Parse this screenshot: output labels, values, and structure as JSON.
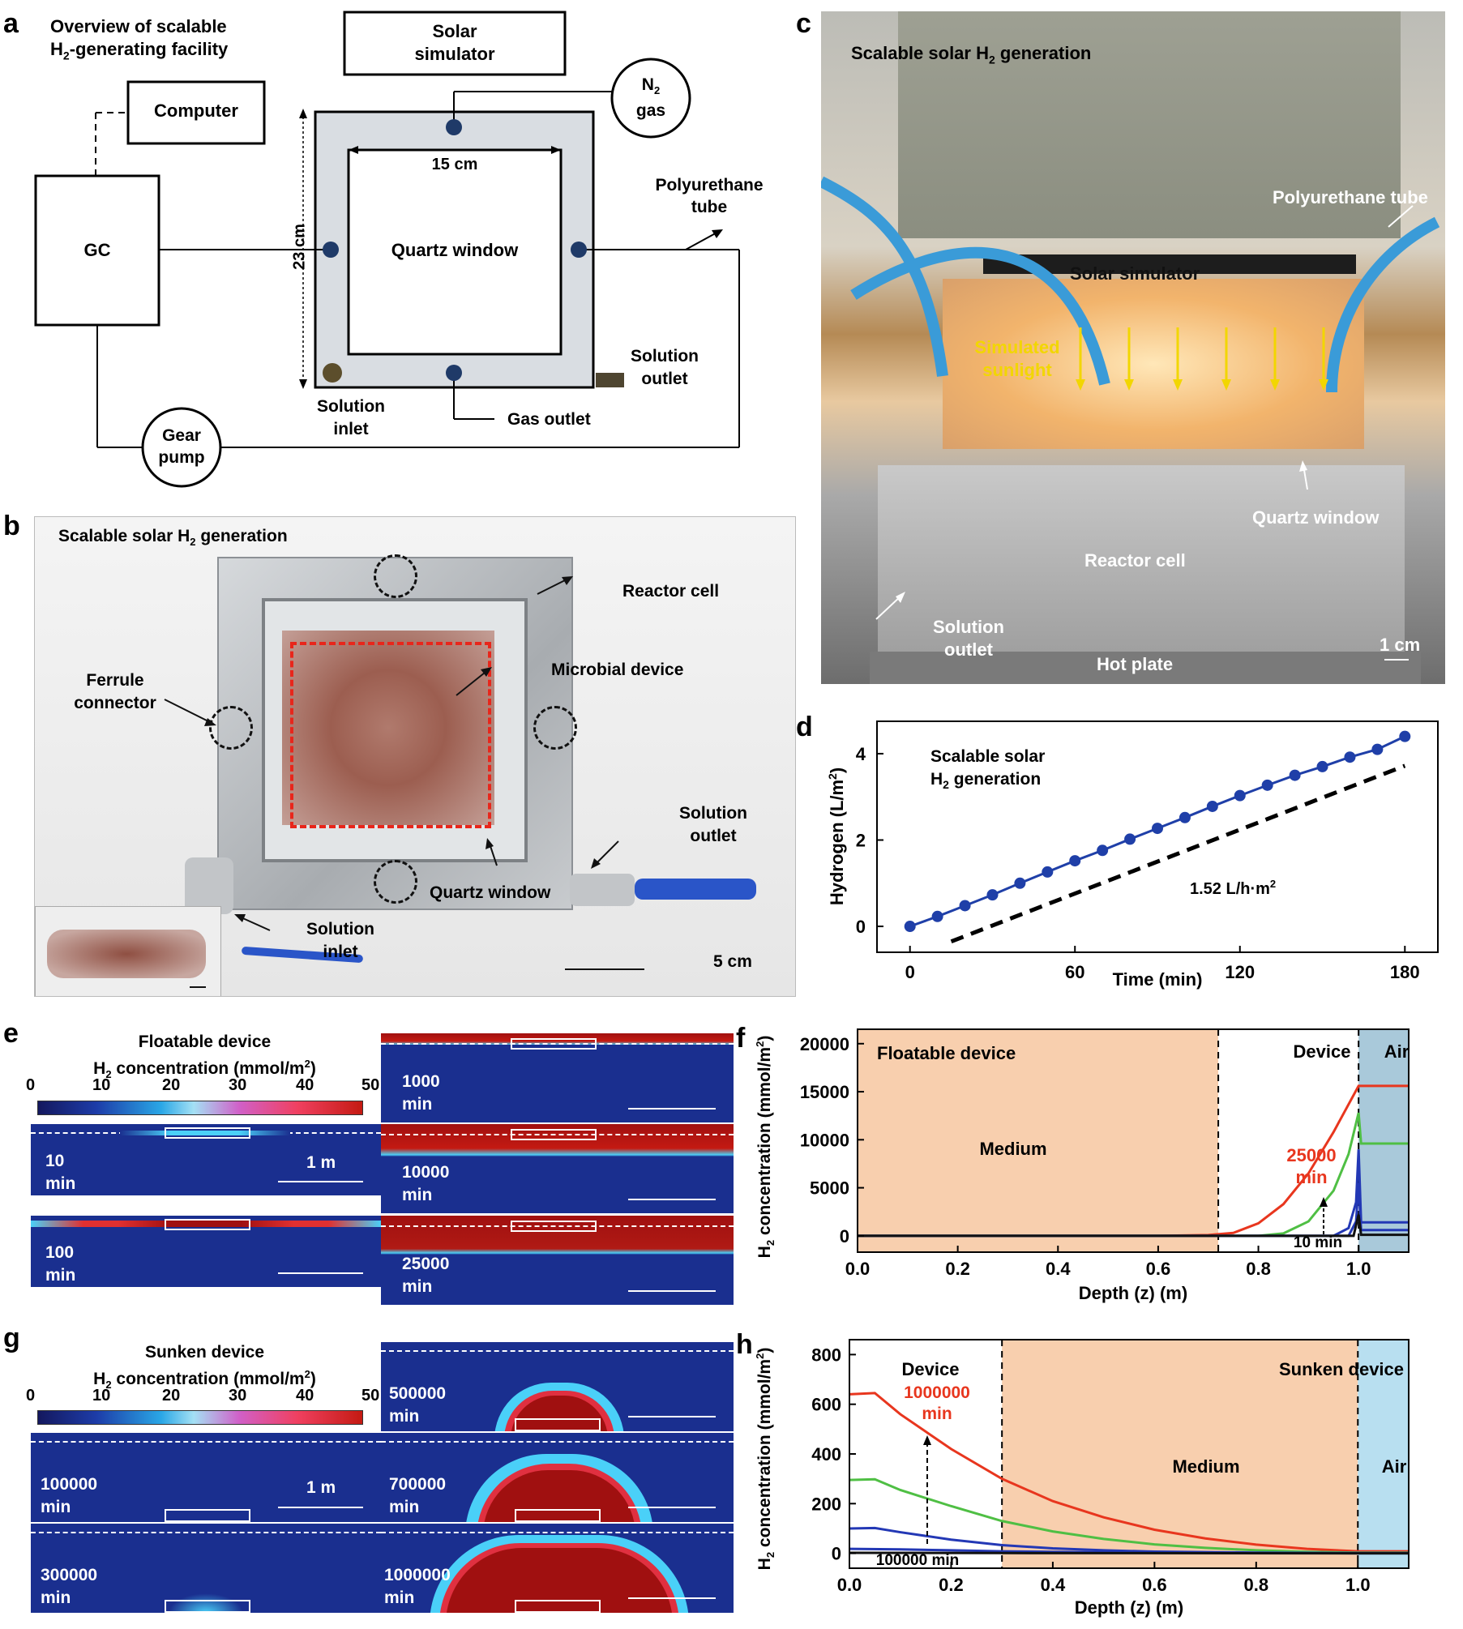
{
  "panels": [
    "a",
    "b",
    "c",
    "d",
    "e",
    "f",
    "g",
    "h"
  ],
  "panel_a": {
    "title_line1": "Overview of scalable",
    "title_line2_pre": "H",
    "title_line2_sub": "2",
    "title_line2_post": "-generating facility",
    "solar_line1": "Solar",
    "solar_line2": "simulator",
    "computer": "Computer",
    "n2_main": "N",
    "n2_sub": "2",
    "n2_line2": "gas",
    "gc": "GC",
    "dim_width": "15 cm",
    "dim_height": "23 cm",
    "quartz": "Quartz window",
    "poly_line1": "Polyurethane",
    "poly_line2": "tube",
    "sol_outlet_line1": "Solution",
    "sol_outlet_line2": "outlet",
    "sol_inlet_line1": "Solution",
    "sol_inlet_line2": "inlet",
    "gas_outlet": "Gas outlet",
    "gear_line1": "Gear",
    "gear_line2": "pump"
  },
  "panel_b": {
    "title_pre": "Scalable solar H",
    "title_sub": "2",
    "title_post": " generation",
    "reactor_cell": "Reactor cell",
    "microbial_device": "Microbial device",
    "ferrule_line1": "Ferrule",
    "ferrule_line2": "connector",
    "sol_outlet_line1": "Solution",
    "sol_outlet_line2": "outlet",
    "quartz": "Quartz window",
    "sol_inlet_line1": "Solution",
    "sol_inlet_line2": "inlet",
    "scale": "5 cm"
  },
  "panel_c": {
    "title_pre": "Scalable solar H",
    "title_sub": "2",
    "title_post": " generation",
    "poly": "Polyurethane tube",
    "solar_sim": "Solar simulator",
    "sunlight_line1": "Simulated",
    "sunlight_line2": "sunlight",
    "quartz": "Quartz window",
    "reactor": "Reactor cell",
    "sol_outlet_line1": "Solution",
    "sol_outlet_line2": "outlet",
    "hot_plate": "Hot plate",
    "scale": "1 cm"
  },
  "panel_d_chart": {
    "type": "line",
    "annot_line1": "Scalable solar",
    "annot_line2_pre": "H",
    "annot_line2_sub": "2",
    "annot_line2_post": " generation",
    "rate_label": "1.52 L/h·m",
    "rate_sup": "2",
    "xlabel": "Time (min)",
    "ylabel_pre": "Hydrogen (L/m",
    "ylabel_sup": "2",
    "ylabel_post": ")",
    "xlim": [
      -12,
      192
    ],
    "ylim": [
      -0.6,
      4.75
    ],
    "xticks": [
      0,
      60,
      120,
      180
    ],
    "yticks": [
      0,
      2,
      4
    ],
    "x": [
      0,
      10,
      20,
      30,
      40,
      50,
      60,
      70,
      80,
      90,
      100,
      110,
      120,
      130,
      140,
      150,
      160,
      170,
      180
    ],
    "y": [
      0,
      0.23,
      0.48,
      0.73,
      1.0,
      1.26,
      1.52,
      1.76,
      2.02,
      2.27,
      2.52,
      2.78,
      3.03,
      3.27,
      3.5,
      3.7,
      3.92,
      4.1,
      4.4
    ],
    "fit_line": {
      "x": [
        15,
        180
      ],
      "y": [
        -0.35,
        3.72
      ]
    },
    "color": "#1f3fa8"
  },
  "panel_e": {
    "title": "Floatable device",
    "sub_pre": "H",
    "sub_sub": "2",
    "sub_post": " concentration (mmol/m",
    "sub_sup": "2",
    "sub_end": ")",
    "cbar_ticks": [
      "0",
      "10",
      "20",
      "30",
      "40",
      "50"
    ],
    "snap_10": {
      "n": "10",
      "unit": "min"
    },
    "snap_100": {
      "n": "100",
      "unit": "min"
    },
    "snap_1000": {
      "n": "1000",
      "unit": "min"
    },
    "snap_10000": {
      "n": "10000",
      "unit": "min"
    },
    "snap_25000": {
      "n": "25000",
      "unit": "min"
    },
    "scale": "1 m"
  },
  "panel_f_chart": {
    "type": "line",
    "region_floatable": "Floatable device",
    "region_medium": "Medium",
    "region_device": "Device",
    "region_air": "Air",
    "annot_25000_n": "25000",
    "annot_25000_unit": "min",
    "annot_10": "10 min",
    "xlabel": "Depth (z) (m)",
    "ylabel_pre": "H",
    "ylabel_sub": "2",
    "ylabel_mid": " concentration (mmol/m",
    "ylabel_sup": "2",
    "ylabel_post": ")",
    "xlim": [
      0.0,
      1.1
    ],
    "ylim": [
      -1700,
      21500
    ],
    "xticks": [
      "0.0",
      "0.2",
      "0.4",
      "0.6",
      "0.8",
      "1.0"
    ],
    "yticks": [
      "0",
      "5000",
      "10000",
      "15000",
      "20000"
    ],
    "boundaries": [
      0.72,
      1.0
    ],
    "series": [
      {
        "color": "#e8361e",
        "x": [
          0.0,
          0.6,
          0.7,
          0.75,
          0.8,
          0.85,
          0.9,
          0.95,
          1.0,
          1.1
        ],
        "y": [
          0,
          0,
          80,
          300,
          1300,
          3300,
          6500,
          10800,
          15600,
          15600
        ]
      },
      {
        "color": "#4fbf44",
        "x": [
          0.0,
          0.8,
          0.85,
          0.9,
          0.95,
          0.98,
          1.0,
          1.005,
          1.1
        ],
        "y": [
          0,
          0,
          250,
          1500,
          4700,
          8500,
          12800,
          9600,
          9600
        ]
      },
      {
        "color": "#2338b5",
        "x": [
          0.0,
          0.95,
          0.98,
          0.995,
          1.0,
          1.005,
          1.1
        ],
        "y": [
          0,
          0,
          800,
          3500,
          9000,
          1400,
          1400
        ]
      },
      {
        "color": "#2338b5",
        "x": [
          0.0,
          0.98,
          0.995,
          1.0,
          1.005,
          1.1
        ],
        "y": [
          0,
          0,
          1500,
          5500,
          600,
          600
        ]
      },
      {
        "color": "#111111",
        "x": [
          0.0,
          0.99,
          1.0,
          1.005,
          1.1
        ],
        "y": [
          0,
          0,
          2200,
          100,
          100
        ]
      }
    ]
  },
  "panel_g": {
    "title": "Sunken device",
    "sub_pre": "H",
    "sub_sub": "2",
    "sub_post": " concentration (mmol/m",
    "sub_sup": "2",
    "sub_end": ")",
    "cbar_ticks": [
      "0",
      "10",
      "20",
      "30",
      "40",
      "50"
    ],
    "snap_100000": {
      "n": "100000",
      "unit": "min"
    },
    "snap_300000": {
      "n": "300000",
      "unit": "min"
    },
    "snap_500000": {
      "n": "500000",
      "unit": "min"
    },
    "snap_700000": {
      "n": "700000",
      "unit": "min"
    },
    "snap_1000000": {
      "n": "1000000",
      "unit": "min"
    },
    "scale": "1 m"
  },
  "panel_h_chart": {
    "type": "line",
    "region_device": "Device",
    "region_sunken": "Sunken device",
    "region_medium": "Medium",
    "region_air": "Air",
    "annot_1000000_n": "1000000",
    "annot_1000000_unit": "min",
    "annot_100000": "100000 min",
    "xlabel": "Depth (z) (m)",
    "ylabel_pre": "H",
    "ylabel_sub": "2",
    "ylabel_mid": " concentration (mmol/m",
    "ylabel_sup": "2",
    "ylabel_post": ")",
    "xlim": [
      0.0,
      1.1
    ],
    "ylim": [
      -60,
      860
    ],
    "xticks": [
      "0.0",
      "0.2",
      "0.4",
      "0.6",
      "0.8",
      "1.0"
    ],
    "yticks": [
      "0",
      "200",
      "400",
      "600",
      "800"
    ],
    "boundaries": [
      0.3,
      1.0
    ],
    "series": [
      {
        "color": "#e8361e",
        "x": [
          0.0,
          0.05,
          0.1,
          0.2,
          0.3,
          0.4,
          0.5,
          0.6,
          0.7,
          0.8,
          0.9,
          1.0,
          1.1
        ],
        "y": [
          640,
          645,
          560,
          420,
          300,
          210,
          145,
          95,
          60,
          35,
          18,
          8,
          8
        ]
      },
      {
        "color": "#4fbf44",
        "x": [
          0.0,
          0.05,
          0.1,
          0.2,
          0.3,
          0.4,
          0.5,
          0.6,
          0.7,
          0.8,
          0.9,
          1.0,
          1.1
        ],
        "y": [
          295,
          298,
          255,
          190,
          130,
          88,
          58,
          36,
          22,
          12,
          6,
          3,
          3
        ]
      },
      {
        "color": "#2338b5",
        "x": [
          0.0,
          0.05,
          0.1,
          0.2,
          0.3,
          0.4,
          0.5,
          0.6,
          0.8,
          1.0,
          1.1
        ],
        "y": [
          100,
          102,
          85,
          55,
          33,
          20,
          12,
          7,
          3,
          1,
          1
        ]
      },
      {
        "color": "#2338b5",
        "x": [
          0.0,
          0.1,
          0.2,
          0.3,
          0.5,
          1.0,
          1.1
        ],
        "y": [
          18,
          16,
          12,
          8,
          4,
          0,
          0
        ]
      },
      {
        "color": "#111111",
        "x": [
          0.0,
          0.3,
          1.0,
          1.1
        ],
        "y": [
          2,
          1,
          0,
          0
        ]
      }
    ]
  }
}
